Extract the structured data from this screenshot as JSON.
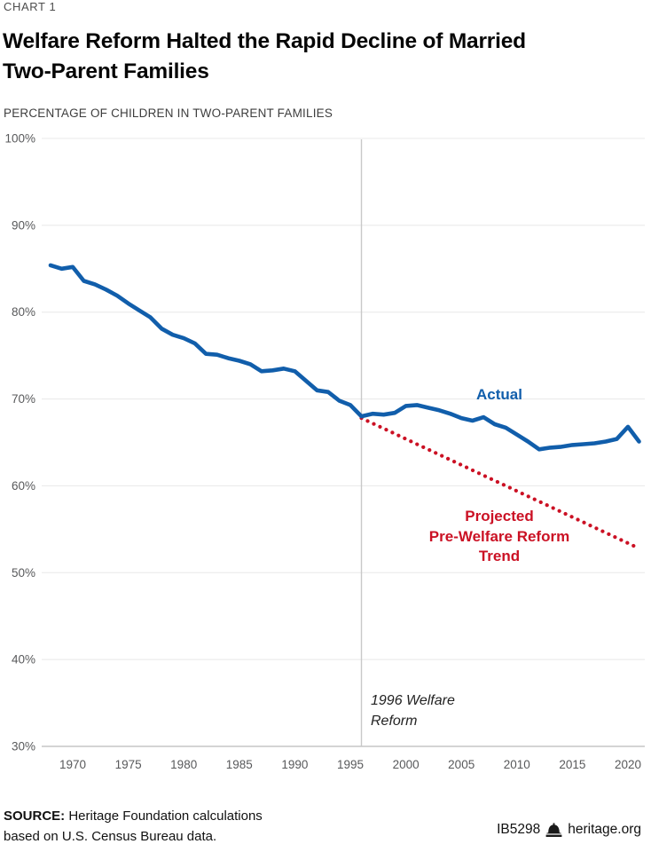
{
  "header": {
    "kicker": "CHART 1",
    "title": "Welfare Reform Halted the Rapid Decline of Married\nTwo-Parent Families",
    "subtitle": "PERCENTAGE OF CHILDREN IN TWO-PARENT FAMILIES"
  },
  "chart_data": {
    "type": "line",
    "title": "Welfare Reform Halted the Rapid Decline of Married Two-Parent Families",
    "subtitle": "PERCENTAGE OF CHILDREN IN TWO-PARENT FAMILIES",
    "xlabel": "",
    "ylabel": "Percentage of children in two-parent families",
    "ylim": [
      30,
      100
    ],
    "yticks": [
      100,
      90,
      80,
      70,
      60,
      50,
      40,
      30
    ],
    "ytick_suffix": "%",
    "xticks": [
      1970,
      1975,
      1980,
      1985,
      1990,
      1995,
      2000,
      2005,
      2010,
      2015,
      2020
    ],
    "grid": "horizontal",
    "legend_position": "inline-labels",
    "series": [
      {
        "name": "Actual",
        "color": "#115eab",
        "style": "solid",
        "years": [
          1968,
          1969,
          1970,
          1971,
          1972,
          1973,
          1974,
          1975,
          1976,
          1977,
          1978,
          1979,
          1980,
          1981,
          1982,
          1983,
          1984,
          1985,
          1986,
          1987,
          1988,
          1989,
          1990,
          1991,
          1992,
          1993,
          1994,
          1995,
          1996,
          1997,
          1998,
          1999,
          2000,
          2001,
          2002,
          2003,
          2004,
          2005,
          2006,
          2007,
          2008,
          2009,
          2010,
          2011,
          2012,
          2013,
          2014,
          2015,
          2016,
          2017,
          2018,
          2019,
          2020,
          2021
        ],
        "values": [
          85.4,
          85.0,
          85.2,
          83.6,
          83.2,
          82.6,
          81.9,
          81.0,
          80.2,
          79.4,
          78.1,
          77.4,
          77.0,
          76.4,
          75.2,
          75.1,
          74.7,
          74.4,
          74.0,
          73.2,
          73.3,
          73.5,
          73.2,
          72.1,
          71.0,
          70.8,
          69.8,
          69.3,
          68.0,
          68.3,
          68.2,
          68.4,
          69.2,
          69.3,
          69.0,
          68.7,
          68.3,
          67.8,
          67.5,
          67.9,
          67.1,
          66.7,
          65.9,
          65.1,
          64.2,
          64.4,
          64.5,
          64.7,
          64.8,
          64.9,
          65.1,
          65.4,
          66.8,
          65.1
        ]
      },
      {
        "name": "Projected Pre-Welfare Reform Trend",
        "color": "#cb1124",
        "style": "dotted",
        "years": [
          1996,
          1997,
          1998,
          1999,
          2000,
          2001,
          2002,
          2003,
          2004,
          2005,
          2006,
          2007,
          2008,
          2009,
          2010,
          2011,
          2012,
          2013,
          2014,
          2015,
          2016,
          2017,
          2018,
          2019,
          2020,
          2021
        ],
        "values": [
          67.8,
          67.2,
          66.6,
          66.0,
          65.4,
          64.8,
          64.2,
          63.6,
          63.0,
          62.4,
          61.8,
          61.2,
          60.6,
          60.0,
          59.4,
          58.8,
          58.2,
          57.6,
          57.0,
          56.4,
          55.8,
          55.2,
          54.6,
          54.0,
          53.4,
          52.8
        ]
      }
    ],
    "annotation": {
      "vline_year": 1996,
      "vline_label": "1996 Welfare\nReform"
    }
  },
  "chart_labels": {
    "actual": "Actual",
    "projected": "Projected\nPre-Welfare Reform\nTrend",
    "reform": "1996 Welfare\nReform"
  },
  "footer": {
    "source_label": "SOURCE:",
    "source_line1": "Heritage Foundation calculations",
    "source_line2": "based on U.S. Census Bureau data.",
    "report_id": "IB5298",
    "logo_icon": "liberty-bell-icon",
    "site": "heritage.org"
  },
  "colors": {
    "actual_line": "#115eab",
    "projected_line": "#cb1124",
    "grid": "#e8e8e8",
    "axis_bottom": "#a8a8a8",
    "vline": "#c8c8c8",
    "tick_text": "#58595b"
  }
}
